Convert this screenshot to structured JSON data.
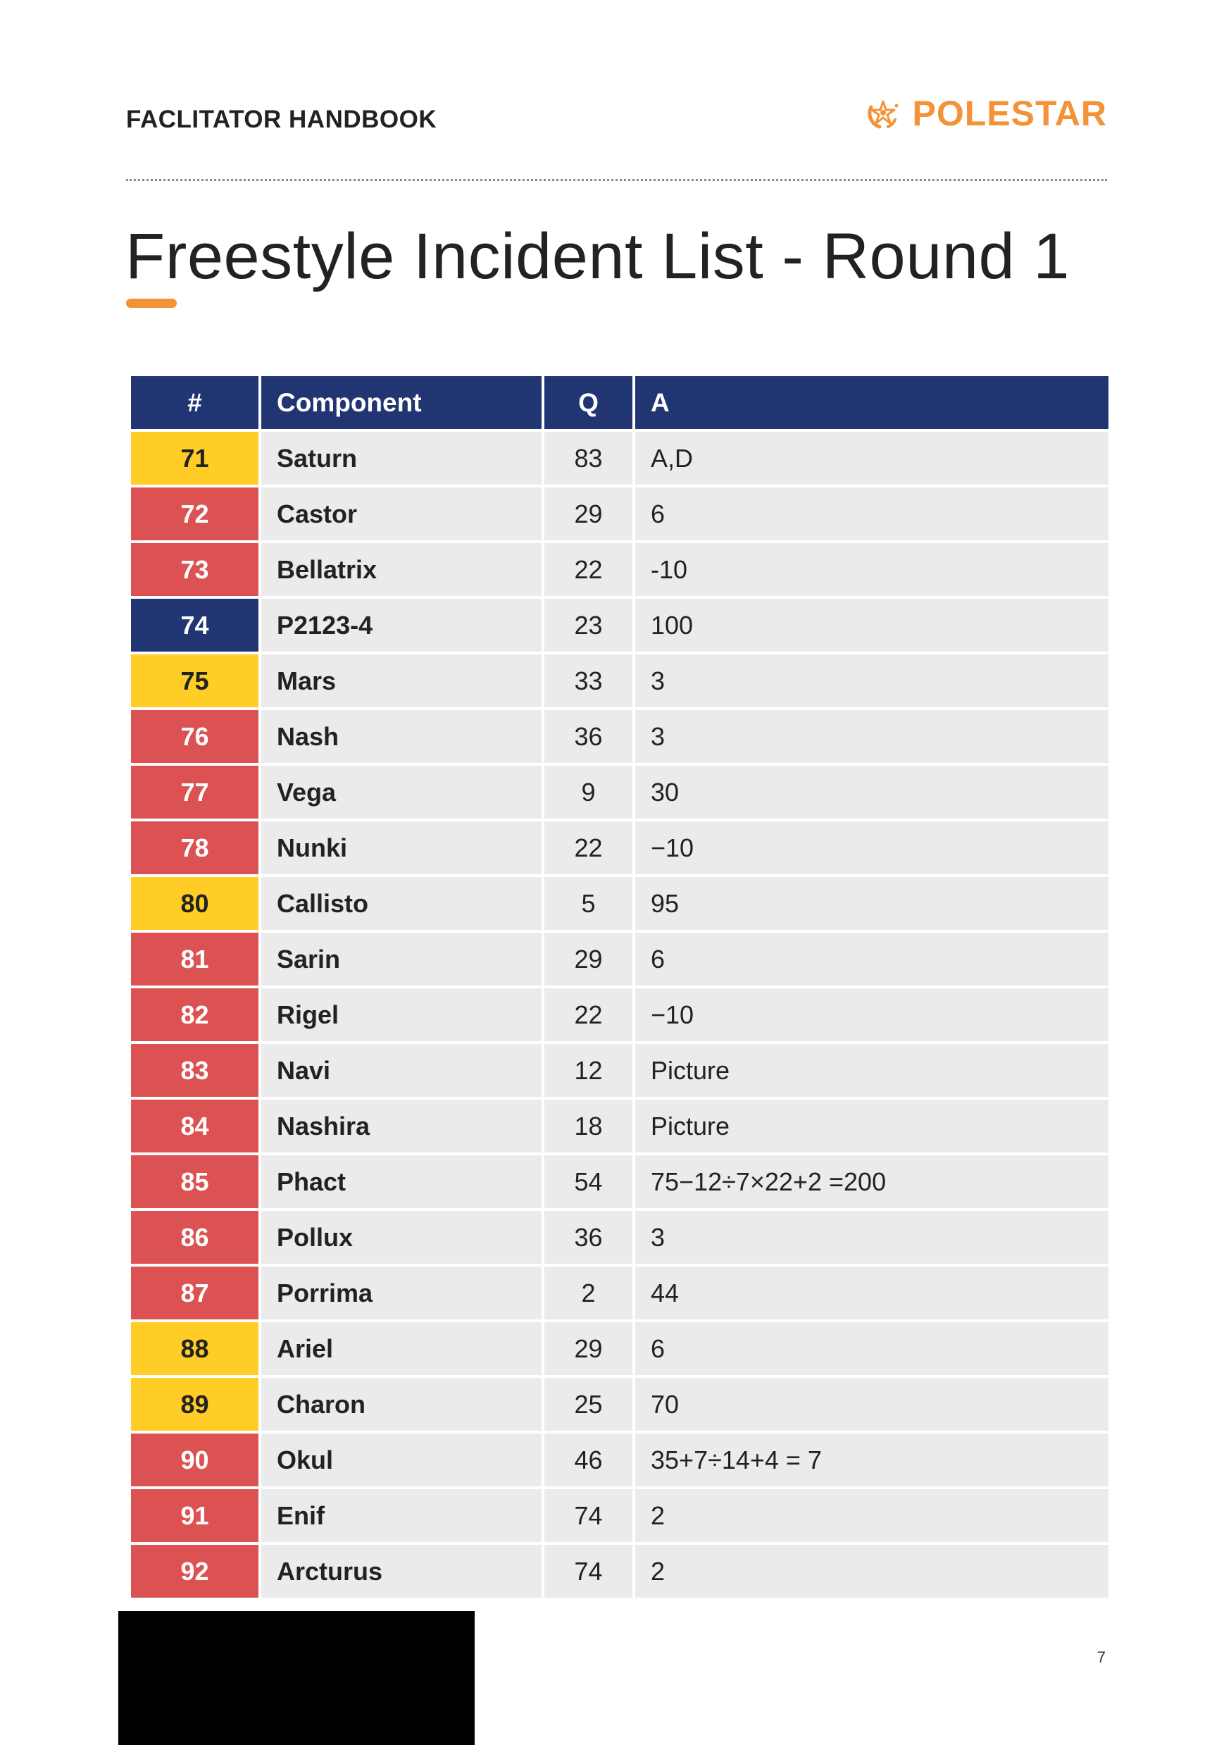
{
  "header": {
    "handbook_title": "FACLITATOR HANDBOOK",
    "brand_name": "POLESTAR",
    "brand_icon": "polestar-logo-icon"
  },
  "page": {
    "title": "Freestyle Incident List - Round 1",
    "page_number": "7"
  },
  "colors": {
    "accent": "#F39237",
    "header_bg": "#213572",
    "cell_bg": "#EBEBEB",
    "yellow": "#FFCD26",
    "red": "#DC5252",
    "navy": "#213572"
  },
  "table": {
    "columns": [
      "#",
      "Component",
      "Q",
      "A"
    ],
    "rows": [
      {
        "num": "71",
        "component": "Saturn",
        "q": "83",
        "a": "A,D",
        "color": "yellow"
      },
      {
        "num": "72",
        "component": "Castor",
        "q": "29",
        "a": "6",
        "color": "red"
      },
      {
        "num": "73",
        "component": "Bellatrix",
        "q": "22",
        "a": "-10",
        "color": "red"
      },
      {
        "num": "74",
        "component": "P2123-4",
        "q": "23",
        "a": "100",
        "color": "navy"
      },
      {
        "num": "75",
        "component": "Mars",
        "q": "33",
        "a": "3",
        "color": "yellow"
      },
      {
        "num": "76",
        "component": "Nash",
        "q": "36",
        "a": "3",
        "color": "red"
      },
      {
        "num": "77",
        "component": "Vega",
        "q": "9",
        "a": "30",
        "color": "red"
      },
      {
        "num": "78",
        "component": "Nunki",
        "q": "22",
        "a": "−10",
        "color": "red"
      },
      {
        "num": "80",
        "component": "Callisto",
        "q": "5",
        "a": "95",
        "color": "yellow"
      },
      {
        "num": "81",
        "component": "Sarin",
        "q": "29",
        "a": "6",
        "color": "red"
      },
      {
        "num": "82",
        "component": "Rigel",
        "q": "22",
        "a": "−10",
        "color": "red"
      },
      {
        "num": "83",
        "component": "Navi",
        "q": "12",
        "a": "Picture",
        "color": "red"
      },
      {
        "num": "84",
        "component": "Nashira",
        "q": "18",
        "a": "Picture",
        "color": "red"
      },
      {
        "num": "85",
        "component": "Phact",
        "q": "54",
        "a": "75−12÷7×22+2 =200",
        "color": "red"
      },
      {
        "num": "86",
        "component": "Pollux",
        "q": "36",
        "a": "3",
        "color": "red"
      },
      {
        "num": "87",
        "component": "Porrima",
        "q": "2",
        "a": "44",
        "color": "red"
      },
      {
        "num": "88",
        "component": "Ariel",
        "q": "29",
        "a": "6",
        "color": "yellow"
      },
      {
        "num": "89",
        "component": "Charon",
        "q": "25",
        "a": "70",
        "color": "yellow"
      },
      {
        "num": "90",
        "component": "Okul",
        "q": "46",
        "a": "35+7÷14+4 = 7",
        "color": "red"
      },
      {
        "num": "91",
        "component": "Enif",
        "q": "74",
        "a": "2",
        "color": "red"
      },
      {
        "num": "92",
        "component": "Arcturus",
        "q": "74",
        "a": "2",
        "color": "red"
      }
    ]
  }
}
